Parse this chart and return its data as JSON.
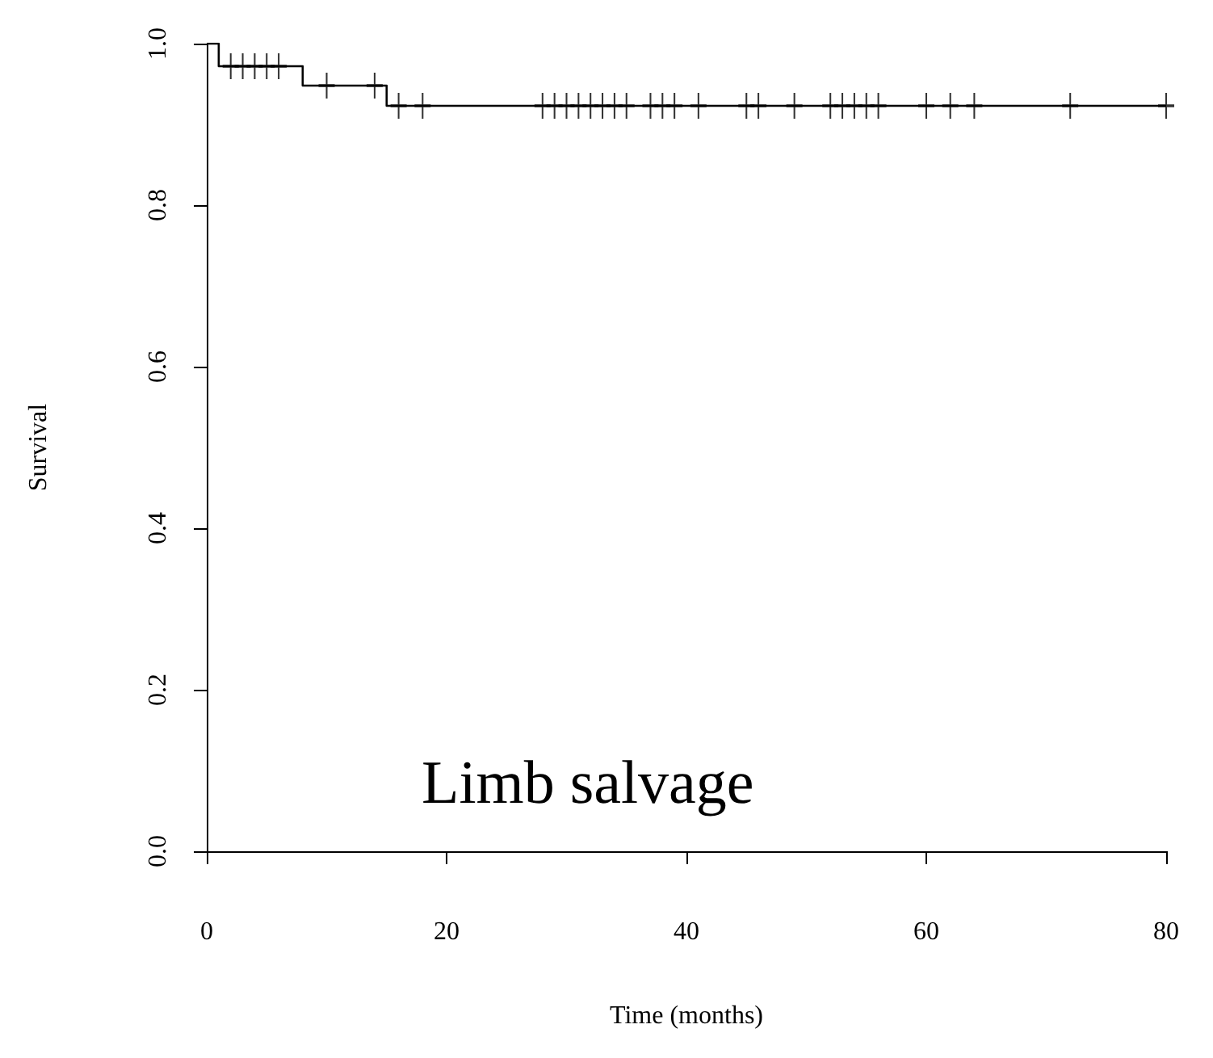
{
  "chart_data": {
    "type": "step",
    "xlabel": "Time (months)",
    "ylabel": "Survival",
    "annotations": [
      "Limb salvage"
    ],
    "xlim": [
      0,
      80
    ],
    "xticks": [
      0,
      20,
      40,
      60,
      80
    ],
    "ylim": [
      0,
      1
    ],
    "yticks": [
      {
        "value": 0,
        "label": "0.0"
      },
      {
        "value": 0.2,
        "label": "0.2"
      },
      {
        "value": 0.4,
        "label": "0.4"
      },
      {
        "value": 0.6,
        "label": "0.6"
      },
      {
        "value": 0.8,
        "label": "0.8"
      },
      {
        "value": 1,
        "label": "1.0"
      }
    ],
    "grid": false,
    "series": [
      {
        "type": "step",
        "color": "#000000",
        "x": [
          0,
          1,
          8,
          15,
          80
        ],
        "values": [
          1,
          0.972,
          0.948,
          0.923,
          0.923
        ],
        "marker": "none",
        "line_style": "solid"
      },
      {
        "type": "scatter",
        "color": "#000000",
        "marker": "cross",
        "x": [
          2,
          3,
          4,
          5,
          6,
          10,
          14,
          16,
          18,
          28,
          29,
          30,
          31,
          32,
          33,
          34,
          35,
          37,
          38,
          39,
          41,
          45,
          46,
          49,
          52,
          53,
          54,
          55,
          56,
          60,
          62,
          64,
          72,
          80
        ],
        "values": [
          0.972,
          0.972,
          0.972,
          0.972,
          0.972,
          0.948,
          0.948,
          0.923,
          0.923,
          0.923,
          0.923,
          0.923,
          0.923,
          0.923,
          0.923,
          0.923,
          0.923,
          0.923,
          0.923,
          0.923,
          0.923,
          0.923,
          0.923,
          0.923,
          0.923,
          0.923,
          0.923,
          0.923,
          0.923,
          0.923,
          0.923,
          0.923,
          0.923,
          0.923
        ]
      }
    ]
  }
}
